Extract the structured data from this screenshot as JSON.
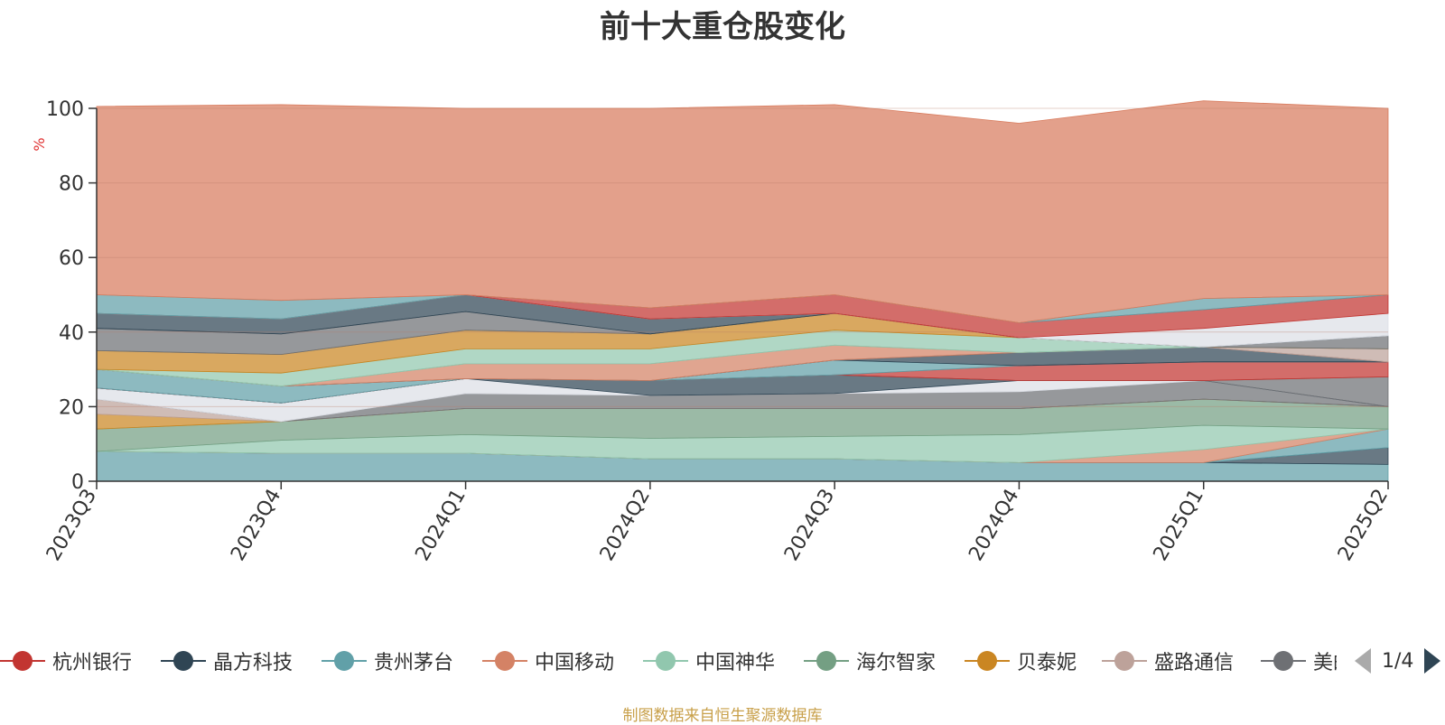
{
  "title": "前十大重仓股变化",
  "source_note": "制图数据来自恒生聚源数据库",
  "legend_pager": "1/4",
  "legend": [
    {
      "name": "杭州银行",
      "color": "#c23531"
    },
    {
      "name": "晶方科技",
      "color": "#2f4554"
    },
    {
      "name": "贵州茅台",
      "color": "#61a0a8"
    },
    {
      "name": "中国移动",
      "color": "#d48265"
    },
    {
      "name": "中国神华",
      "color": "#91c7ae"
    },
    {
      "name": "海尔智家",
      "color": "#749f83"
    },
    {
      "name": "贝泰妮",
      "color": "#ca8622"
    },
    {
      "name": "盛路通信",
      "color": "#bda29a"
    },
    {
      "name": "美的",
      "color": "#6e7074"
    }
  ],
  "chart_data": {
    "type": "area",
    "stacked": true,
    "title": "前十大重仓股变化",
    "ylabel": "%",
    "ylim": [
      0,
      100
    ],
    "yticks": [
      0,
      20,
      40,
      60,
      80,
      100
    ],
    "categories": [
      "2023Q3",
      "2023Q4",
      "2024Q1",
      "2024Q2",
      "2024Q3",
      "2024Q4",
      "2025Q1",
      "2025Q2"
    ],
    "grid": true,
    "layers": [
      {
        "color": "#61a0a8",
        "values": [
          8,
          7.5,
          7.5,
          6,
          6,
          5,
          5,
          4.5
        ]
      },
      {
        "color": "#2f4554",
        "values": [
          0,
          0,
          0,
          0,
          0,
          0,
          0,
          4.5
        ]
      },
      {
        "color": "#61a0a8",
        "values": [
          0,
          0,
          0,
          0,
          0,
          0,
          0,
          5
        ]
      },
      {
        "color": "#d48265",
        "values": [
          0,
          0,
          0,
          0,
          0,
          0,
          3.5,
          0
        ]
      },
      {
        "color": "#91c7ae",
        "values": [
          0,
          3.5,
          5,
          5.5,
          6,
          7.5,
          6.5,
          0
        ]
      },
      {
        "color": "#749f83",
        "values": [
          6,
          5,
          7,
          8,
          7.5,
          7,
          7,
          6
        ]
      },
      {
        "color": "#ca8622",
        "values": [
          4,
          0,
          0,
          0,
          0,
          0,
          0,
          0
        ]
      },
      {
        "color": "#bda29a",
        "values": [
          4,
          0,
          0,
          0,
          0,
          0,
          0,
          0
        ]
      },
      {
        "color": "#6e7074",
        "values": [
          0,
          0,
          4,
          3.5,
          4,
          4.5,
          5,
          0
        ]
      },
      {
        "color": "#dcdfe6",
        "values": [
          3,
          5,
          4,
          0,
          0,
          3,
          0,
          0
        ]
      },
      {
        "color": "#2f4554",
        "values": [
          0,
          0,
          0,
          4,
          5,
          0,
          0,
          0
        ]
      },
      {
        "color": "#6e7074",
        "values": [
          0,
          0,
          0,
          0,
          0,
          0,
          0,
          8
        ]
      },
      {
        "color": "#c23531",
        "values": [
          0,
          0,
          0,
          0,
          0,
          4,
          5,
          4
        ]
      },
      {
        "color": "#61a0a8",
        "values": [
          5,
          4.5,
          0,
          0,
          4,
          0,
          0,
          0
        ]
      },
      {
        "color": "#2f4554",
        "values": [
          0,
          0,
          0,
          0,
          0,
          3.5,
          4,
          0
        ]
      },
      {
        "color": "#d48265",
        "values": [
          0,
          0,
          4,
          4.5,
          4,
          0,
          0,
          0
        ]
      },
      {
        "color": "#bda29a",
        "values": [
          0,
          0,
          0,
          0,
          0,
          0,
          0,
          3.5
        ]
      },
      {
        "color": "#91c7ae",
        "values": [
          0,
          3.5,
          4,
          4,
          4,
          4,
          0,
          0
        ]
      },
      {
        "color": "#ca8622",
        "values": [
          5,
          5,
          5,
          4,
          4.5,
          0,
          0,
          0
        ]
      },
      {
        "color": "#6e7074",
        "values": [
          6,
          5.5,
          5,
          0,
          0,
          0,
          0,
          3.5
        ]
      },
      {
        "color": "#2f4554",
        "values": [
          4,
          4,
          4.5,
          4,
          0,
          0,
          0,
          0
        ]
      },
      {
        "color": "#dcdfe6",
        "values": [
          0,
          0,
          0,
          0,
          0,
          0,
          5,
          6
        ]
      },
      {
        "color": "#c23531",
        "values": [
          0,
          0,
          0,
          3,
          5,
          4,
          5,
          5
        ]
      },
      {
        "color": "#61a0a8",
        "values": [
          5,
          5,
          0,
          0,
          0,
          0,
          3,
          0
        ]
      },
      {
        "color": "#d87c5e",
        "values": [
          50.5,
          52.5,
          50,
          53.5,
          51,
          53.5,
          53,
          50
        ]
      }
    ]
  }
}
